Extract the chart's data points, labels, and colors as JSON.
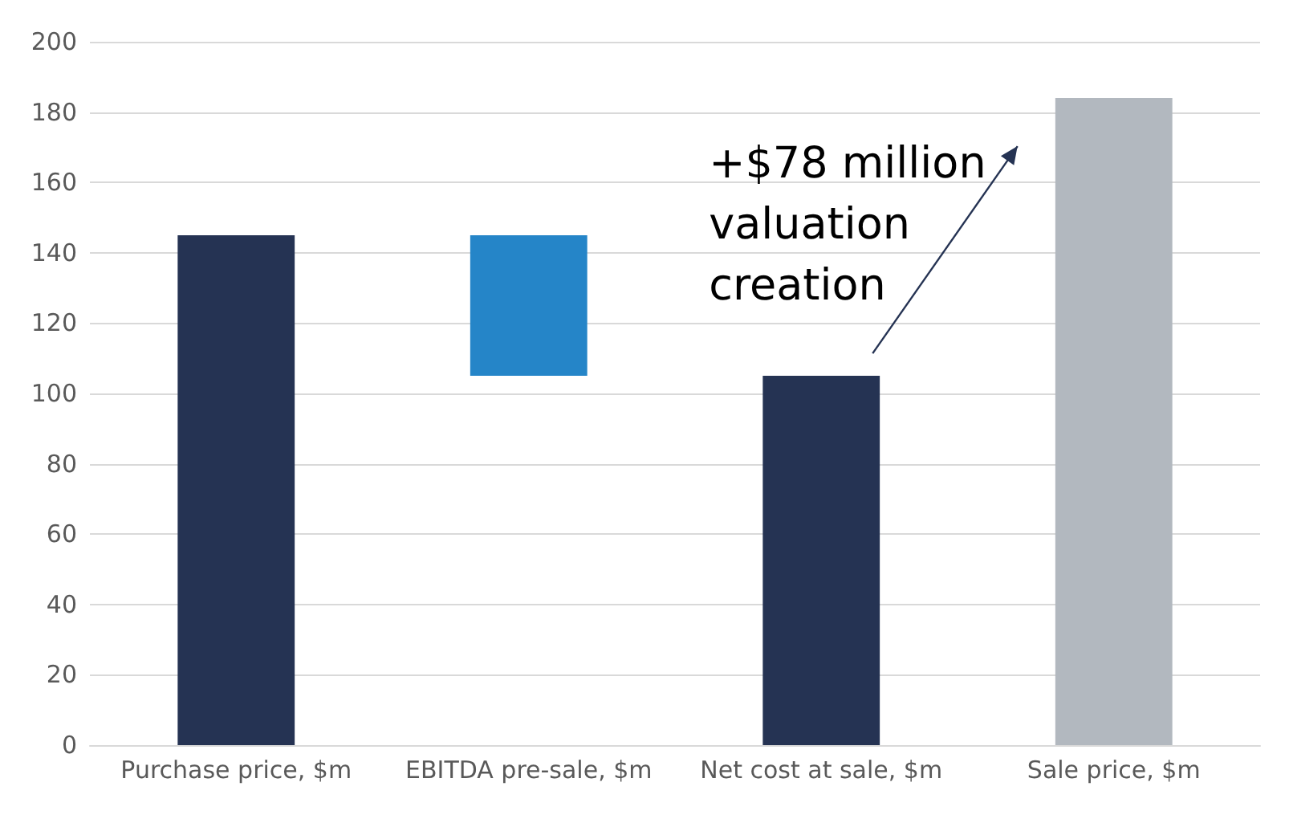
{
  "chart_data": {
    "type": "bar",
    "categories": [
      "Purchase price, $m",
      "EBITDA pre-sale, $m",
      "Net cost at sale, $m",
      "Sale price, $m"
    ],
    "values": [
      145,
      40,
      105,
      184
    ],
    "base": [
      0,
      105,
      0,
      0
    ],
    "colors": [
      "#253353",
      "#2585c8",
      "#253353",
      "#b2b8bf"
    ],
    "ylim": [
      0,
      200
    ],
    "yticks": [
      0,
      20,
      40,
      60,
      80,
      100,
      120,
      140,
      160,
      180,
      200
    ],
    "grid": "y",
    "annotations": [
      "+$78 million valuation creation"
    ]
  }
}
